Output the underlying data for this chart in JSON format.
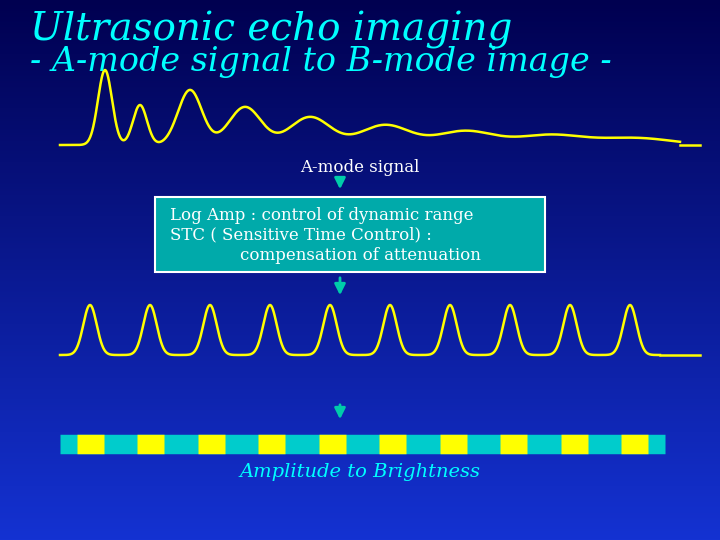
{
  "title_line1": "Ultrasonic echo imaging",
  "title_line2": "- A-mode signal to B-mode image -",
  "title_color": "#00FFFF",
  "bg_top": "#000044",
  "bg_bottom": "#2244CC",
  "signal_color": "#FFFF00",
  "label_amode": "A-mode signal",
  "label_amode_color": "#FFFFFF",
  "label_amplitude": "Amplitude to Brightness",
  "label_amplitude_color": "#00FFFF",
  "box_bg_color": "#00AAAA",
  "box_text_line1": "Log Amp : control of dynamic range",
  "box_text_line2": "STC ( Sensitive Time Control) :",
  "box_text_line3": "    compensation of attenuation",
  "box_text_color": "#FFFFFF",
  "arrow_color": "#00CCAA",
  "bmode_cyan": "#00CCCC",
  "bmode_yellow": "#FFFF00",
  "fig_w": 7.2,
  "fig_h": 5.4,
  "dpi": 100
}
